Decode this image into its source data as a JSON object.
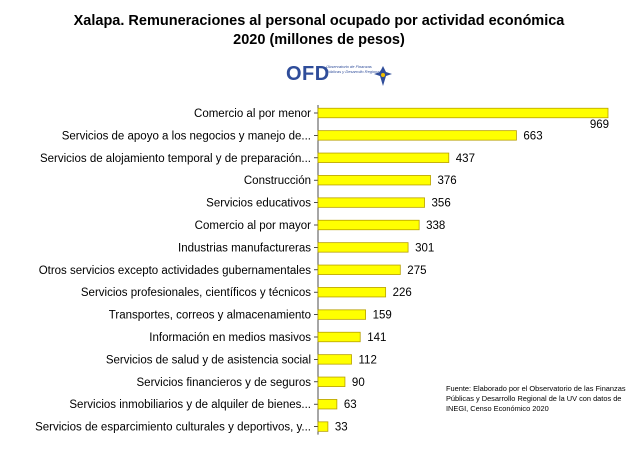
{
  "title_line1": "Xalapa.  Remuneraciones al personal ocupado por actividad económica",
  "title_line2": "2020 (millones de pesos)",
  "logo": {
    "text": "OFD",
    "subtitle": "Observatorio de Finanzas Públicas y Desarrollo Regional",
    "brand_color": "#2f4d9a"
  },
  "source_note": "Fuente: Elaborado por el Observatorio de las Finanzas Públicas  y Desarrollo Regional de la UV con  datos de INEGI, Censo Económico 2020",
  "chart_data": {
    "type": "bar",
    "orientation": "horizontal",
    "title": "Xalapa.  Remuneraciones al personal ocupado por actividad económica 2020 (millones de pesos)",
    "categories": [
      "Comercio al por menor",
      "Servicios de apoyo a los negocios y manejo de...",
      "Servicios de alojamiento temporal y de preparación...",
      "Construcción",
      "Servicios educativos",
      "Comercio al por mayor",
      "Industrias manufactureras",
      "Otros servicios excepto actividades gubernamentales",
      "Servicios profesionales, científicos y técnicos",
      "Transportes, correos y almacenamiento",
      "Información en medios masivos",
      "Servicios de salud y de asistencia social",
      "Servicios financieros y de seguros",
      "Servicios inmobiliarios y de alquiler de bienes...",
      "Servicios de esparcimiento culturales y deportivos, y..."
    ],
    "values": [
      969,
      663,
      437,
      376,
      356,
      338,
      301,
      275,
      226,
      159,
      141,
      112,
      90,
      63,
      33
    ],
    "xlim": [
      0,
      969
    ],
    "grid": false,
    "legend": "none",
    "bar_color": "#ffff00"
  }
}
